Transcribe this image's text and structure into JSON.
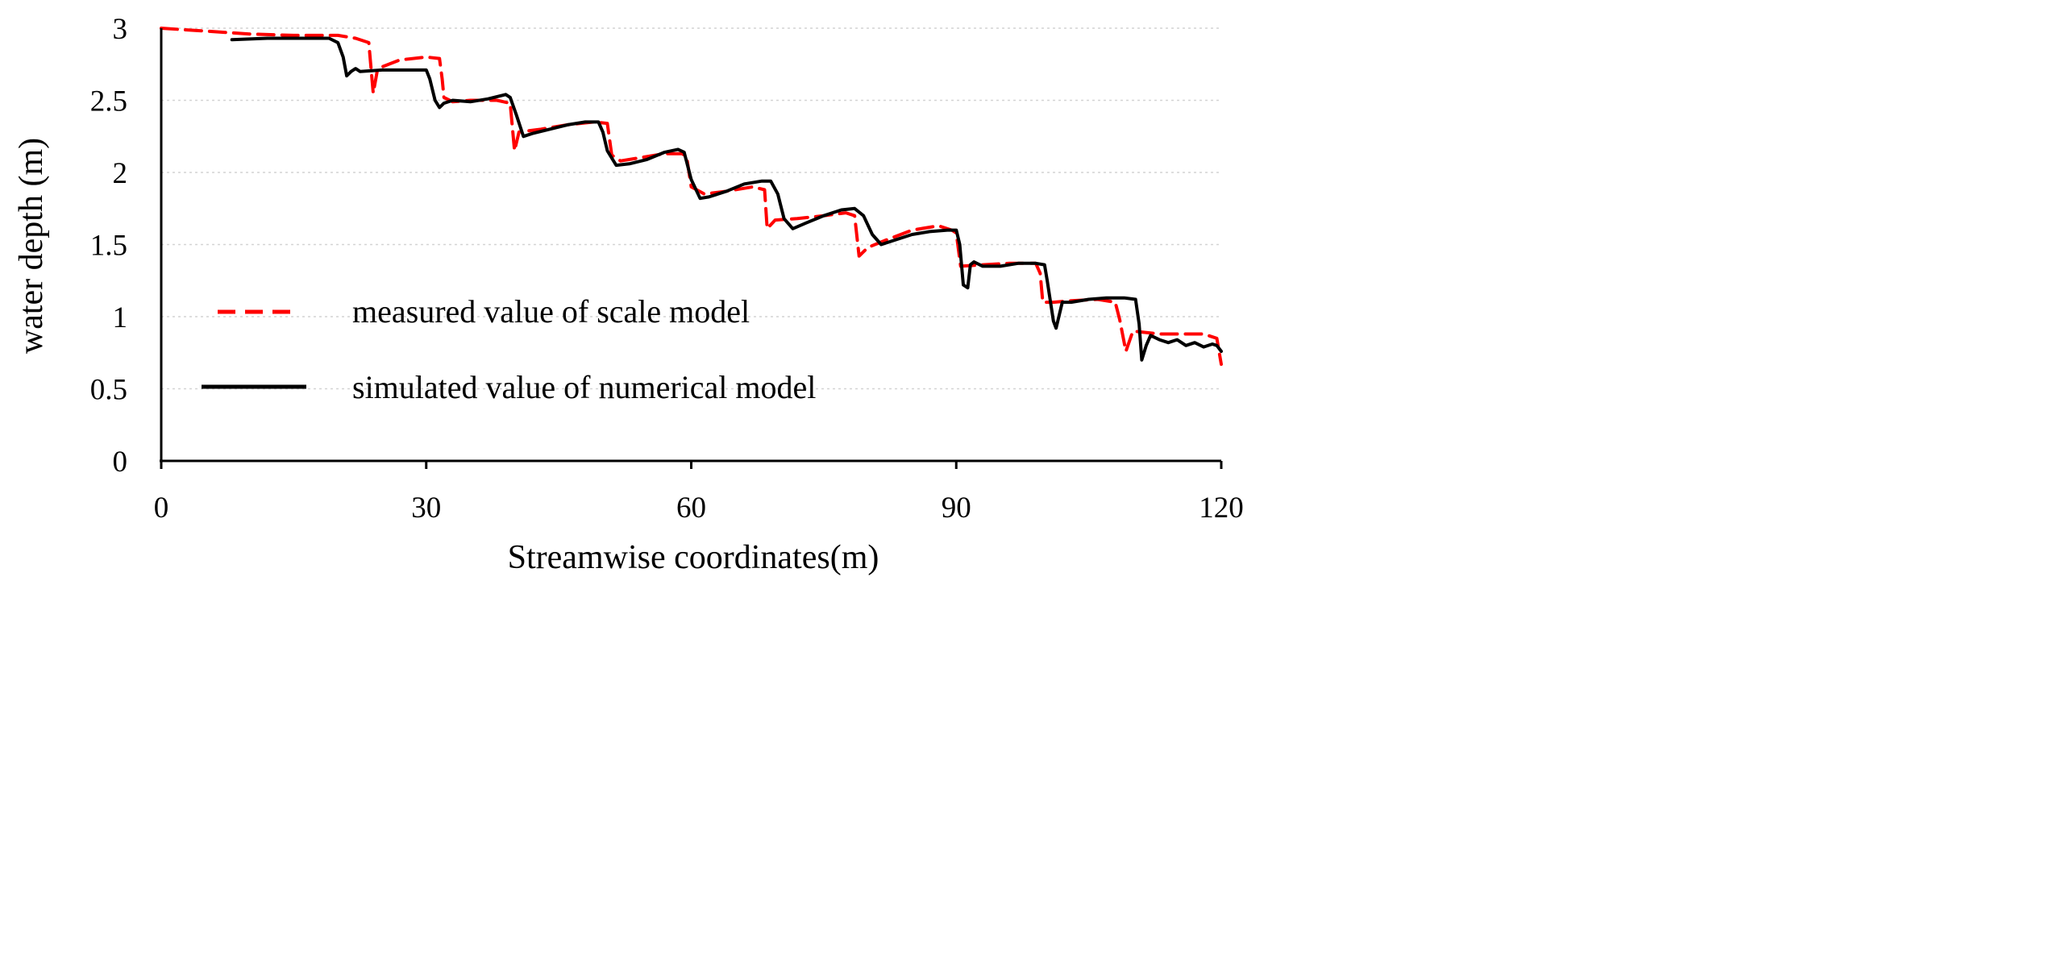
{
  "chart_data": {
    "type": "line",
    "title": "",
    "xlabel": "Streamwise coordinates(m)",
    "ylabel": "water depth (m)",
    "xlim": [
      0,
      120
    ],
    "ylim": [
      0,
      3
    ],
    "x_ticks": [
      0,
      30,
      60,
      90,
      120
    ],
    "y_ticks": [
      0,
      0.5,
      1,
      1.5,
      2,
      2.5,
      3
    ],
    "x_tick_labels": [
      "0",
      "30",
      "60",
      "90",
      "120"
    ],
    "y_tick_labels": [
      "0",
      "0.5",
      "1",
      "1.5",
      "2",
      "2.5",
      "3"
    ],
    "grid": "horizontal dotted",
    "legend_position": "lower-left",
    "series": [
      {
        "name": "measured value of scale model",
        "color": "#ff0000",
        "style": "dashed",
        "points": [
          [
            0,
            3.0
          ],
          [
            5,
            2.98
          ],
          [
            10,
            2.96
          ],
          [
            15,
            2.95
          ],
          [
            20,
            2.95
          ],
          [
            22,
            2.93
          ],
          [
            23.5,
            2.9
          ],
          [
            24,
            2.55
          ],
          [
            24.5,
            2.72
          ],
          [
            27,
            2.78
          ],
          [
            30,
            2.8
          ],
          [
            31.5,
            2.79
          ],
          [
            31.8,
            2.65
          ],
          [
            32,
            2.52
          ],
          [
            33,
            2.49
          ],
          [
            35,
            2.5
          ],
          [
            38,
            2.5
          ],
          [
            39.5,
            2.48
          ],
          [
            40,
            2.15
          ],
          [
            40.5,
            2.28
          ],
          [
            43,
            2.3
          ],
          [
            46,
            2.33
          ],
          [
            49,
            2.35
          ],
          [
            50.5,
            2.34
          ],
          [
            51,
            2.12
          ],
          [
            52,
            2.08
          ],
          [
            54,
            2.1
          ],
          [
            57,
            2.13
          ],
          [
            59,
            2.13
          ],
          [
            59.5,
            2.1
          ],
          [
            60,
            1.9
          ],
          [
            61.5,
            1.85
          ],
          [
            64,
            1.87
          ],
          [
            67,
            1.9
          ],
          [
            68.3,
            1.88
          ],
          [
            68.6,
            1.61
          ],
          [
            69.5,
            1.67
          ],
          [
            72,
            1.68
          ],
          [
            75,
            1.7
          ],
          [
            77.5,
            1.72
          ],
          [
            78.5,
            1.7
          ],
          [
            79,
            1.42
          ],
          [
            80,
            1.48
          ],
          [
            82,
            1.53
          ],
          [
            85,
            1.6
          ],
          [
            88,
            1.63
          ],
          [
            89.5,
            1.6
          ],
          [
            90,
            1.58
          ],
          [
            90.5,
            1.35
          ],
          [
            93,
            1.36
          ],
          [
            96,
            1.37
          ],
          [
            99,
            1.37
          ],
          [
            99.5,
            1.3
          ],
          [
            99.8,
            1.1
          ],
          [
            101,
            1.1
          ],
          [
            103,
            1.11
          ],
          [
            106,
            1.12
          ],
          [
            108,
            1.1
          ],
          [
            108.5,
            0.98
          ],
          [
            109.2,
            0.76
          ],
          [
            110,
            0.9
          ],
          [
            113,
            0.88
          ],
          [
            116,
            0.88
          ],
          [
            118,
            0.88
          ],
          [
            119.5,
            0.85
          ],
          [
            120,
            0.67
          ]
        ]
      },
      {
        "name": "simulated value of numerical model",
        "color": "#000000",
        "style": "solid",
        "points": [
          [
            8,
            2.92
          ],
          [
            12,
            2.93
          ],
          [
            16,
            2.93
          ],
          [
            19,
            2.93
          ],
          [
            20,
            2.9
          ],
          [
            20.6,
            2.8
          ],
          [
            21,
            2.67
          ],
          [
            21.5,
            2.7
          ],
          [
            22,
            2.72
          ],
          [
            22.5,
            2.7
          ],
          [
            25,
            2.71
          ],
          [
            28,
            2.71
          ],
          [
            30,
            2.71
          ],
          [
            30.4,
            2.65
          ],
          [
            31,
            2.5
          ],
          [
            31.5,
            2.45
          ],
          [
            32,
            2.48
          ],
          [
            33,
            2.5
          ],
          [
            35,
            2.49
          ],
          [
            37,
            2.51
          ],
          [
            39,
            2.54
          ],
          [
            39.5,
            2.52
          ],
          [
            40.2,
            2.4
          ],
          [
            41,
            2.25
          ],
          [
            42,
            2.27
          ],
          [
            44,
            2.3
          ],
          [
            46,
            2.33
          ],
          [
            48,
            2.35
          ],
          [
            49.5,
            2.35
          ],
          [
            50,
            2.28
          ],
          [
            50.5,
            2.15
          ],
          [
            51.5,
            2.05
          ],
          [
            53,
            2.06
          ],
          [
            55,
            2.09
          ],
          [
            57,
            2.14
          ],
          [
            58.5,
            2.16
          ],
          [
            59.2,
            2.14
          ],
          [
            60,
            1.95
          ],
          [
            61,
            1.82
          ],
          [
            62,
            1.83
          ],
          [
            64,
            1.87
          ],
          [
            66,
            1.92
          ],
          [
            68,
            1.94
          ],
          [
            69,
            1.94
          ],
          [
            69.8,
            1.85
          ],
          [
            70.5,
            1.68
          ],
          [
            71.5,
            1.61
          ],
          [
            73,
            1.65
          ],
          [
            75,
            1.7
          ],
          [
            77,
            1.74
          ],
          [
            78.5,
            1.75
          ],
          [
            79.5,
            1.7
          ],
          [
            80.5,
            1.57
          ],
          [
            81.5,
            1.5
          ],
          [
            83,
            1.53
          ],
          [
            85,
            1.57
          ],
          [
            87,
            1.59
          ],
          [
            89,
            1.6
          ],
          [
            90,
            1.6
          ],
          [
            90.4,
            1.5
          ],
          [
            90.8,
            1.22
          ],
          [
            91.3,
            1.2
          ],
          [
            91.6,
            1.36
          ],
          [
            92,
            1.38
          ],
          [
            93,
            1.35
          ],
          [
            95,
            1.35
          ],
          [
            97,
            1.37
          ],
          [
            99,
            1.37
          ],
          [
            100,
            1.36
          ],
          [
            100.3,
            1.25
          ],
          [
            101,
            0.97
          ],
          [
            101.3,
            0.92
          ],
          [
            102,
            1.1
          ],
          [
            103,
            1.1
          ],
          [
            105,
            1.12
          ],
          [
            107,
            1.13
          ],
          [
            109,
            1.13
          ],
          [
            110.3,
            1.12
          ],
          [
            110.7,
            0.95
          ],
          [
            111,
            0.7
          ],
          [
            111.5,
            0.8
          ],
          [
            112,
            0.87
          ],
          [
            113,
            0.84
          ],
          [
            114,
            0.82
          ],
          [
            115,
            0.84
          ],
          [
            116,
            0.8
          ],
          [
            117,
            0.82
          ],
          [
            118,
            0.79
          ],
          [
            119,
            0.81
          ],
          [
            119.5,
            0.8
          ],
          [
            120,
            0.76
          ]
        ]
      }
    ]
  }
}
